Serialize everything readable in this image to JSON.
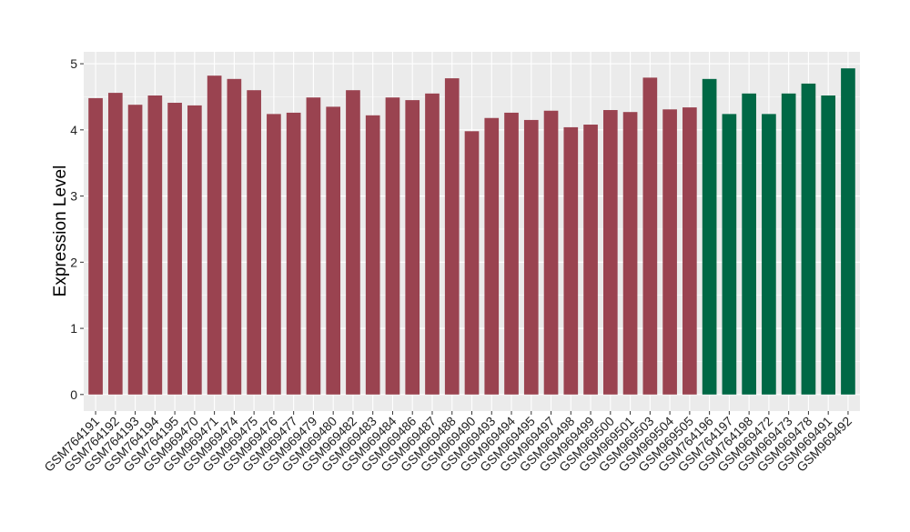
{
  "chart_data": {
    "type": "bar",
    "title": "",
    "xlabel": "",
    "ylabel": "Expression Level",
    "ylim": [
      -0.25,
      5.18
    ],
    "yticks": [
      "0",
      "1",
      "2",
      "3",
      "4",
      "5"
    ],
    "grid": true,
    "categories": [
      "GSM764191",
      "GSM764192",
      "GSM764193",
      "GSM764194",
      "GSM764195",
      "GSM969470",
      "GSM969471",
      "GSM969474",
      "GSM969475",
      "GSM969476",
      "GSM969477",
      "GSM969479",
      "GSM969480",
      "GSM969482",
      "GSM969483",
      "GSM969484",
      "GSM969486",
      "GSM969487",
      "GSM969488",
      "GSM969490",
      "GSM969493",
      "GSM969494",
      "GSM969495",
      "GSM969497",
      "GSM969498",
      "GSM969499",
      "GSM969500",
      "GSM969501",
      "GSM969503",
      "GSM969504",
      "GSM969505",
      "GSM764196",
      "GSM764197",
      "GSM764198",
      "GSM969472",
      "GSM969473",
      "GSM969478",
      "GSM969491",
      "GSM969492"
    ],
    "values": [
      4.48,
      4.56,
      4.38,
      4.52,
      4.41,
      4.37,
      4.82,
      4.77,
      4.6,
      4.24,
      4.26,
      4.49,
      4.35,
      4.6,
      4.22,
      4.49,
      4.45,
      4.55,
      4.78,
      3.98,
      4.18,
      4.26,
      4.15,
      4.29,
      4.04,
      4.08,
      4.3,
      4.27,
      4.79,
      4.31,
      4.34,
      4.77,
      4.24,
      4.55,
      4.24,
      4.55,
      4.7,
      4.52,
      4.93
    ],
    "groups": [
      0,
      0,
      0,
      0,
      0,
      0,
      0,
      0,
      0,
      0,
      0,
      0,
      0,
      0,
      0,
      0,
      0,
      0,
      0,
      0,
      0,
      0,
      0,
      0,
      0,
      0,
      0,
      0,
      0,
      0,
      0,
      1,
      1,
      1,
      1,
      1,
      1,
      1,
      1
    ],
    "group_colors": [
      "#9a4350",
      "#006845"
    ]
  }
}
